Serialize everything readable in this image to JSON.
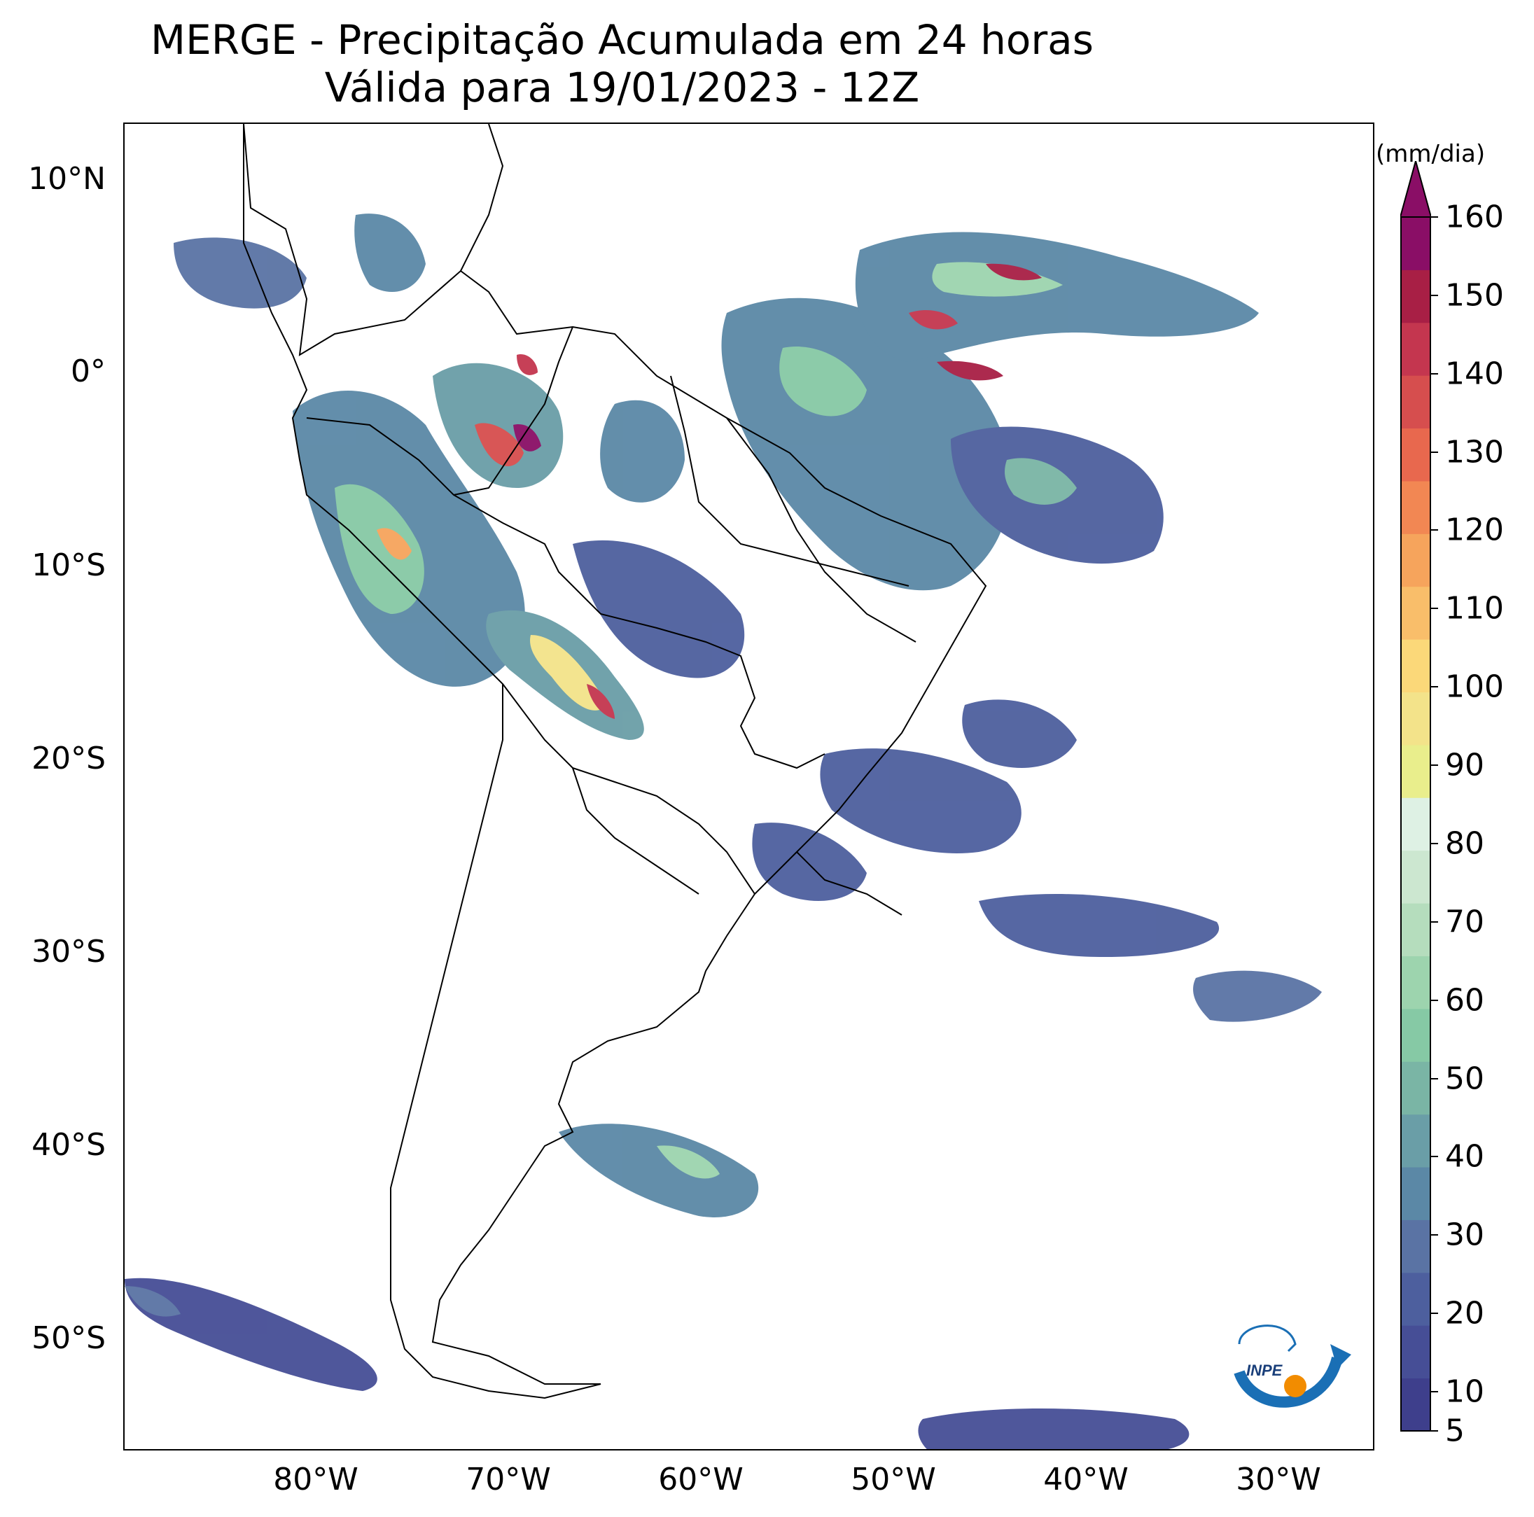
{
  "header": {
    "title_line1": "MERGE - Precipitação Acumulada em 24 horas",
    "title_line2": "Válida para 19/01/2023 - 12Z"
  },
  "map": {
    "lat_labels": [
      "10°N",
      "0°",
      "10°S",
      "20°S",
      "30°S",
      "40°S",
      "50°S"
    ],
    "lon_labels": [
      "80°W",
      "70°W",
      "60°W",
      "50°W",
      "40°W",
      "30°W"
    ],
    "lon_range": [
      -90,
      -25
    ],
    "lat_range": [
      -56,
      13
    ],
    "border_color": "#000000",
    "ocean_color": "#ffffff"
  },
  "colorbar": {
    "units": "(mm/dia)",
    "tick_labels": [
      "5",
      "10",
      "20",
      "30",
      "40",
      "50",
      "60",
      "70",
      "80",
      "90",
      "100",
      "110",
      "120",
      "130",
      "140",
      "150",
      "160"
    ],
    "levels": [
      5,
      160
    ],
    "extend": "max",
    "colors": [
      "#3e3f8c",
      "#464e96",
      "#4d5f9e",
      "#5a73a4",
      "#5b88a6",
      "#6a9ea7",
      "#7ab5a5",
      "#86c9a5",
      "#9dd4ae",
      "#b5ddbd",
      "#cce7d0",
      "#def1e4",
      "#e9ee8c",
      "#f3e38a",
      "#fbd879",
      "#f9be6a",
      "#f6a45c",
      "#f28753",
      "#e8684e",
      "#d64e4e",
      "#c4364f",
      "#a81f45",
      "#8a0e66"
    ]
  },
  "logo": {
    "text": "INPE",
    "arc_color": "#1a6fb5",
    "dot_color": "#f28c00"
  }
}
